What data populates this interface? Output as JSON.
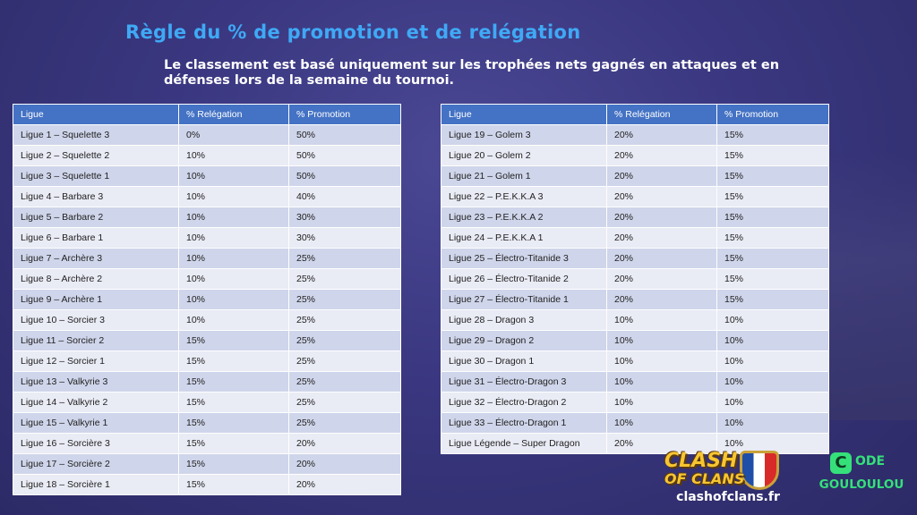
{
  "title": "Règle du % de promotion et de relégation",
  "subtitle": "Le classement est basé uniquement sur les trophées nets gagnés en attaques et en défenses lors de la semaine du tournoi.",
  "headers": [
    "Ligue",
    "% Relégation",
    "% Promotion"
  ],
  "left_rows": [
    [
      "Ligue 1 – Squelette 3",
      "0%",
      "50%"
    ],
    [
      "Ligue 2 – Squelette 2",
      "10%",
      "50%"
    ],
    [
      "Ligue 3 – Squelette 1",
      "10%",
      "50%"
    ],
    [
      "Ligue 4 – Barbare 3",
      "10%",
      "40%"
    ],
    [
      "Ligue 5 – Barbare 2",
      "10%",
      "30%"
    ],
    [
      "Ligue 6 – Barbare 1",
      "10%",
      "30%"
    ],
    [
      "Ligue 7 – Archère 3",
      "10%",
      "25%"
    ],
    [
      "Ligue 8 – Archère 2",
      "10%",
      "25%"
    ],
    [
      "Ligue 9 – Archère 1",
      "10%",
      "25%"
    ],
    [
      "Ligue 10 – Sorcier 3",
      "10%",
      "25%"
    ],
    [
      "Ligue 11 – Sorcier 2",
      "15%",
      "25%"
    ],
    [
      "Ligue 12 – Sorcier 1",
      "15%",
      "25%"
    ],
    [
      "Ligue 13 – Valkyrie 3",
      "15%",
      "25%"
    ],
    [
      "Ligue 14 – Valkyrie 2",
      "15%",
      "25%"
    ],
    [
      "Ligue 15 – Valkyrie 1",
      "15%",
      "25%"
    ],
    [
      "Ligue 16 – Sorcière 3",
      "15%",
      "20%"
    ],
    [
      "Ligue 17 – Sorcière 2",
      "15%",
      "20%"
    ],
    [
      "Ligue 18 – Sorcière 1",
      "15%",
      "20%"
    ]
  ],
  "right_rows": [
    [
      "Ligue 19 – Golem 3",
      "20%",
      "15%"
    ],
    [
      "Ligue 20 – Golem 2",
      "20%",
      "15%"
    ],
    [
      "Ligue 21 – Golem 1",
      "20%",
      "15%"
    ],
    [
      "Ligue 22 – P.E.K.K.A 3",
      "20%",
      "15%"
    ],
    [
      "Ligue 23 – P.E.K.K.A 2",
      "20%",
      "15%"
    ],
    [
      "Ligue 24 – P.E.K.K.A 1",
      "20%",
      "15%"
    ],
    [
      "Ligue 25 – Électro-Titanide 3",
      "20%",
      "15%"
    ],
    [
      "Ligue 26 – Électro-Titanide 2",
      "20%",
      "15%"
    ],
    [
      "Ligue 27 – Électro-Titanide 1",
      "20%",
      "15%"
    ],
    [
      "Ligue 28 – Dragon 3",
      "10%",
      "10%"
    ],
    [
      "Ligue 29 – Dragon 2",
      "10%",
      "10%"
    ],
    [
      "Ligue 30 – Dragon 1",
      "10%",
      "10%"
    ],
    [
      "Ligue 31 – Électro-Dragon 3",
      "10%",
      "10%"
    ],
    [
      "Ligue 32 – Électro-Dragon 2",
      "10%",
      "10%"
    ],
    [
      "Ligue 33 – Électro-Dragon 1",
      "10%",
      "10%"
    ],
    [
      "Ligue Légende – Super Dragon",
      "20%",
      "10%"
    ]
  ],
  "logo": {
    "line1": "CLASH",
    "line2": "OF CLANS",
    "url": "clashofclans.fr"
  },
  "code_badge": {
    "icon_letter": "C",
    "word": "ODE",
    "name": "GOULOULOU"
  },
  "colors": {
    "title": "#3fa9f5",
    "header_bg": "#4472c4",
    "row_odd": "#cfd5ea",
    "row_even": "#e9ebf5",
    "code_green": "#35e07a",
    "logo_gold": "#f7c531"
  }
}
